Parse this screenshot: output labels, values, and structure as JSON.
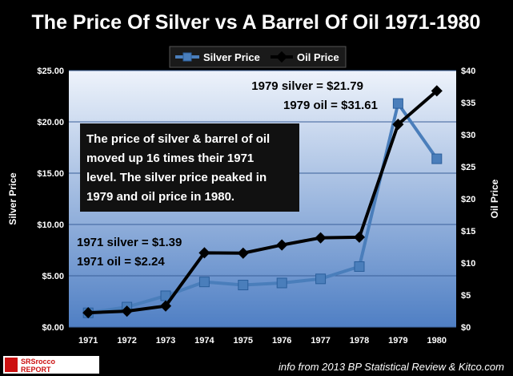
{
  "page": {
    "title": "The Price Of Silver vs A Barrel Of Oil 1971-1980",
    "source": "info from 2013 BP Statistical Review & Kitco.com",
    "logo": {
      "top": "SRSrocco",
      "bottom": "REPORT"
    }
  },
  "colors": {
    "background": "#000000",
    "plot_top": "#eef3fb",
    "plot_bottom": "#4f7fc4",
    "silver": "#4a7ebb",
    "oil": "#000000",
    "logo_red": "#cc1111"
  },
  "annotations": {
    "callout_box": [
      "The price of silver & barrel of oil",
      "moved up 16 times their 1971",
      "level.  The silver price peaked in",
      "1979 and oil price in 1980."
    ],
    "peak_silver": "1979 silver = $21.79",
    "peak_oil": "1979 oil = $31.61",
    "start_silver": "1971 silver = $1.39",
    "start_oil": "1971 oil = $2.24"
  },
  "chart_data": {
    "type": "line",
    "title": "The Price Of Silver vs A Barrel Of Oil 1971-1980",
    "categories": [
      "1971",
      "1972",
      "1973",
      "1974",
      "1975",
      "1976",
      "1977",
      "1978",
      "1979",
      "1980"
    ],
    "series": [
      {
        "name": "Silver Price",
        "axis": "left",
        "values": [
          1.39,
          1.95,
          3.05,
          4.4,
          4.1,
          4.3,
          4.7,
          5.9,
          21.79,
          16.4
        ]
      },
      {
        "name": "Oil Price",
        "axis": "right",
        "values": [
          2.24,
          2.48,
          3.29,
          11.58,
          11.53,
          12.8,
          13.92,
          14.02,
          31.61,
          36.83
        ]
      }
    ],
    "ylabel_left": "Silver  Price",
    "ylabel_right": "Oil Price",
    "ylim_left": [
      0,
      25
    ],
    "ylim_right": [
      0,
      40
    ],
    "yticks_left": [
      "$0.00",
      "$5.00",
      "$10.00",
      "$15.00",
      "$20.00",
      "$25.00"
    ],
    "yticks_right": [
      "$0",
      "$5",
      "$10",
      "$15",
      "$20",
      "$25",
      "$30",
      "$35",
      "$40"
    ],
    "legend": "top-center",
    "grid": true
  }
}
